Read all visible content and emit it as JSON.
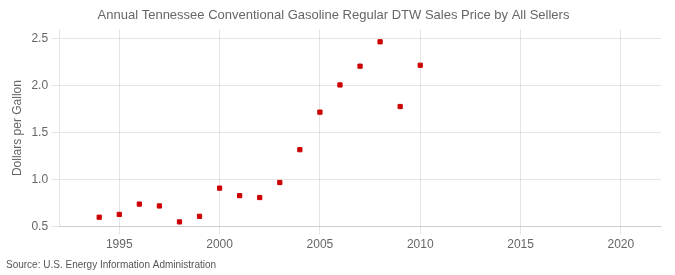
{
  "chart_data": {
    "type": "scatter",
    "title": "Annual Tennessee Conventional Gasoline Regular DTW Sales Price by All Sellers",
    "ylabel": "Dollars per Gallon",
    "annotations": [
      "Source: U.S. Energy Information Administration"
    ],
    "x": [
      1994,
      1995,
      1996,
      1997,
      1998,
      1999,
      2000,
      2001,
      2002,
      2003,
      2004,
      2005,
      2006,
      2007,
      2008,
      2009,
      2010
    ],
    "values": [
      0.6,
      0.63,
      0.74,
      0.72,
      0.55,
      0.61,
      0.91,
      0.83,
      0.81,
      0.97,
      1.32,
      1.72,
      2.01,
      2.21,
      2.47,
      1.78,
      2.22
    ],
    "color": "#cc0000",
    "marker": "square",
    "xlim": [
      1992,
      2022
    ],
    "ylim": [
      0.5,
      2.6
    ],
    "xticks": [
      1995,
      2000,
      2005,
      2010,
      2015,
      2020
    ],
    "yticks": [
      {
        "value": 0.5,
        "label": "0.5"
      },
      {
        "value": 1.0,
        "label": "1.0"
      },
      {
        "value": 1.5,
        "label": "1.5"
      },
      {
        "value": 2.0,
        "label": "2.0"
      },
      {
        "value": 2.5,
        "label": "2.5"
      }
    ],
    "grid": true
  }
}
